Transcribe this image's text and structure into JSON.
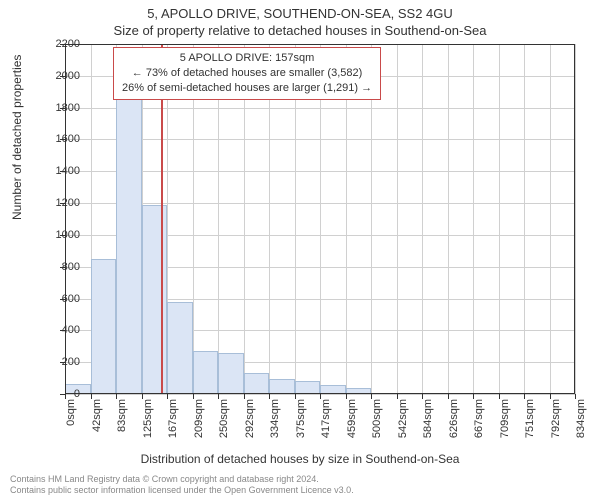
{
  "title_main": "5, APOLLO DRIVE, SOUTHEND-ON-SEA, SS2 4GU",
  "title_sub": "Size of property relative to detached houses in Southend-on-Sea",
  "ylabel": "Number of detached properties",
  "xlabel": "Distribution of detached houses by size in Southend-on-Sea",
  "chart": {
    "type": "histogram",
    "ylim": [
      0,
      2200
    ],
    "ytick_step": 200,
    "yticks": [
      0,
      200,
      400,
      600,
      800,
      1000,
      1200,
      1400,
      1600,
      1800,
      2000,
      2200
    ],
    "xticks": [
      "0sqm",
      "42sqm",
      "83sqm",
      "125sqm",
      "167sqm",
      "209sqm",
      "250sqm",
      "292sqm",
      "334sqm",
      "375sqm",
      "417sqm",
      "459sqm",
      "500sqm",
      "542sqm",
      "584sqm",
      "626sqm",
      "667sqm",
      "709sqm",
      "751sqm",
      "792sqm",
      "834sqm"
    ],
    "bars": [
      60,
      850,
      1870,
      1190,
      580,
      270,
      260,
      130,
      95,
      80,
      55,
      40,
      0,
      0,
      0,
      0,
      0,
      0,
      0,
      0
    ],
    "bar_color": "#dbe5f5",
    "bar_border_color": "#a8bed8",
    "grid_color": "#d0d0d0",
    "background_color": "#ffffff",
    "axis_color": "#333333",
    "ref_line_x": 157,
    "ref_line_color": "#c94a4a",
    "x_range": [
      0,
      834
    ]
  },
  "annotation": {
    "line1": "5 APOLLO DRIVE: 157sqm",
    "line2": "← 73% of detached houses are smaller (3,582)",
    "line3": "26% of semi-detached houses are larger (1,291) →",
    "border_color": "#c94a4a"
  },
  "footer": {
    "line1": "Contains HM Land Registry data © Crown copyright and database right 2024.",
    "line2": "Contains public sector information licensed under the Open Government Licence v3.0."
  }
}
